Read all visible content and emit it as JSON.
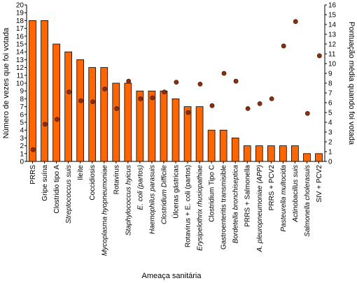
{
  "chart_data": {
    "type": "bar",
    "xlabel": "Ameaça sanitária",
    "ylabel_left": "Número de vezes que foi votada",
    "ylabel_right": "Pontuação média quando foi votada",
    "ylim_left": [
      0,
      20
    ],
    "ylim_right": [
      0,
      16
    ],
    "yticks_left": [
      0,
      1,
      2,
      3,
      4,
      5,
      6,
      7,
      8,
      9,
      10,
      11,
      12,
      13,
      14,
      15,
      16,
      17,
      18,
      19,
      20
    ],
    "yticks_right": [
      0,
      1,
      2,
      3,
      4,
      5,
      6,
      7,
      8,
      9,
      10,
      11,
      12,
      13,
      14,
      15,
      16
    ],
    "grid": false,
    "legend": "none",
    "categories": [
      {
        "label": "PRRS",
        "italic": false
      },
      {
        "label": "Gripe suína",
        "italic": false
      },
      {
        "label": "Clostridio tipo A",
        "italic": false
      },
      {
        "label": "Streptococcus suis",
        "italic": true
      },
      {
        "label": "Ileíte",
        "italic": false
      },
      {
        "label": "Coccidiosis",
        "italic": false
      },
      {
        "label": "Mycoplasma hyopneumoniae",
        "italic": true
      },
      {
        "label": "Rotavirus",
        "italic": false
      },
      {
        "label": "Staphylococcus hyicus",
        "italic": true
      },
      {
        "label": "E. coli (partos)",
        "italic": true
      },
      {
        "label": "Haemophilus parasuis",
        "italic": true
      },
      {
        "label": "Clostridium Difficile",
        "italic": true
      },
      {
        "label": "Úlceras gástricas",
        "italic": false
      },
      {
        "label": "Rotavirus + E. coli (partos)",
        "italic": false
      },
      {
        "label": "Erysipelothrix rhusiopathiae",
        "italic": true
      },
      {
        "label": "Clostridium Tipo C",
        "italic": false
      },
      {
        "label": "Gastroenteritis transmisible",
        "italic": false
      },
      {
        "label": "Bordetella bronchiseptica",
        "italic": true
      },
      {
        "label": "PRRS + Salmonella",
        "italic": false
      },
      {
        "label": "A. pleuropneumoniae (APP)",
        "italic": true
      },
      {
        "label": "PRRS + PCV2",
        "italic": false
      },
      {
        "label": "Pasteurella multocida",
        "italic": true
      },
      {
        "label": "Actinobacillus suis",
        "italic": true
      },
      {
        "label": "Salmonella cholerasuis",
        "italic": true
      },
      {
        "label": "SIV + PCV2",
        "italic": false
      }
    ],
    "series": [
      {
        "type": "bar",
        "axis": "left",
        "color": "#ff6600",
        "values": [
          18,
          18,
          15,
          14,
          13,
          12,
          12,
          10,
          10,
          9,
          9,
          9,
          8,
          7,
          7,
          4,
          4,
          3,
          2,
          2,
          2,
          2,
          2,
          1,
          1
        ]
      },
      {
        "type": "scatter",
        "axis": "right",
        "color": "#8b2e10",
        "values": [
          1.2,
          3.8,
          4.3,
          7.1,
          6.2,
          6.1,
          7.4,
          5.4,
          8.2,
          6.4,
          6.5,
          7.1,
          8.1,
          5.0,
          7.9,
          5.7,
          9.0,
          8.2,
          5.4,
          5.9,
          6.4,
          11.8,
          14.3,
          4.9,
          10.8
        ]
      }
    ]
  }
}
